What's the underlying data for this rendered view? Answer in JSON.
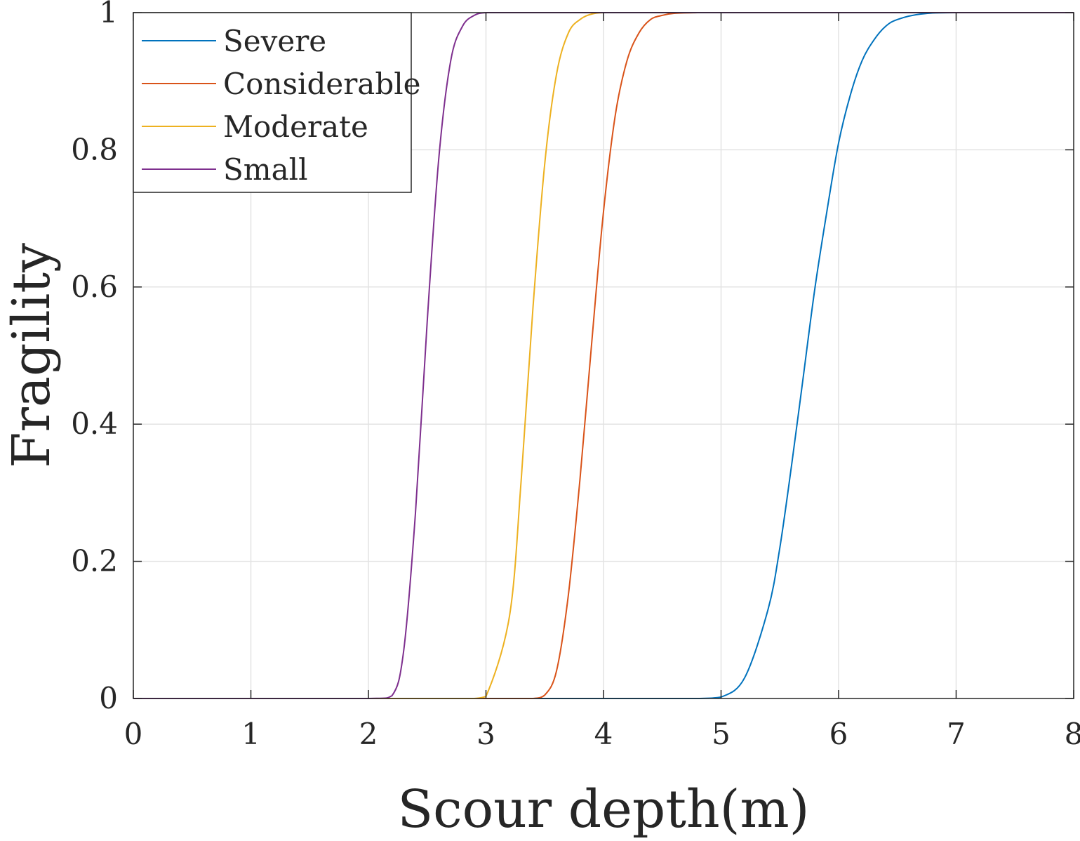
{
  "chart_data": {
    "type": "line",
    "title": "",
    "xlabel": "Scour depth(m)",
    "ylabel": "Fragility",
    "xlim": [
      0,
      8
    ],
    "ylim": [
      0,
      1
    ],
    "xticks": [
      "0",
      "1",
      "2",
      "3",
      "4",
      "5",
      "6",
      "7",
      "8"
    ],
    "yticks": [
      "0",
      "0.2",
      "0.4",
      "0.6",
      "0.8",
      "1"
    ],
    "grid": true,
    "legend_position": "top-left",
    "x": [
      0,
      1,
      2,
      2.2,
      2.3,
      2.4,
      2.5,
      2.6,
      2.7,
      2.8,
      2.9,
      3.0,
      3.2,
      3.3,
      3.4,
      3.5,
      3.6,
      3.7,
      3.8,
      3.9,
      4.0,
      4.1,
      4.2,
      4.3,
      4.4,
      4.5,
      4.6,
      4.8,
      5.0,
      5.2,
      5.4,
      5.5,
      5.6,
      5.7,
      5.8,
      5.9,
      6.0,
      6.1,
      6.2,
      6.3,
      6.4,
      6.5,
      6.7,
      7.0,
      8.0
    ],
    "series": [
      {
        "name": "Severe",
        "color": "#0072BD",
        "values": [
          0,
          0,
          0,
          0,
          0,
          0,
          0,
          0,
          0,
          0,
          0,
          0,
          0,
          0,
          0,
          0,
          0,
          0,
          0,
          0,
          0,
          0,
          0,
          0,
          0,
          0,
          0,
          0,
          0.002,
          0.03,
          0.13,
          0.22,
          0.34,
          0.47,
          0.6,
          0.71,
          0.81,
          0.88,
          0.93,
          0.96,
          0.98,
          0.99,
          0.998,
          1,
          1
        ]
      },
      {
        "name": "Considerable",
        "color": "#D95319",
        "values": [
          0,
          0,
          0,
          0,
          0,
          0,
          0,
          0,
          0,
          0,
          0,
          0,
          0,
          0,
          0,
          0.005,
          0.04,
          0.15,
          0.32,
          0.52,
          0.71,
          0.85,
          0.93,
          0.97,
          0.99,
          0.996,
          0.999,
          1,
          1,
          1,
          1,
          1,
          1,
          1,
          1,
          1,
          1,
          1,
          1,
          1,
          1,
          1,
          1,
          1,
          1
        ]
      },
      {
        "name": "Moderate",
        "color": "#EDB120",
        "values": [
          0,
          0,
          0,
          0,
          0,
          0,
          0,
          0,
          0,
          0,
          0,
          0.003,
          0.12,
          0.32,
          0.57,
          0.78,
          0.91,
          0.97,
          0.99,
          0.998,
          1,
          1,
          1,
          1,
          1,
          1,
          1,
          1,
          1,
          1,
          1,
          1,
          1,
          1,
          1,
          1,
          1,
          1,
          1,
          1,
          1,
          1,
          1,
          1,
          1
        ]
      },
      {
        "name": "Small",
        "color": "#7E2F8E",
        "values": [
          0,
          0,
          0,
          0.004,
          0.07,
          0.27,
          0.55,
          0.79,
          0.93,
          0.98,
          0.996,
          1,
          1,
          1,
          1,
          1,
          1,
          1,
          1,
          1,
          1,
          1,
          1,
          1,
          1,
          1,
          1,
          1,
          1,
          1,
          1,
          1,
          1,
          1,
          1,
          1,
          1,
          1,
          1,
          1,
          1,
          1,
          1,
          1,
          1
        ]
      }
    ]
  }
}
